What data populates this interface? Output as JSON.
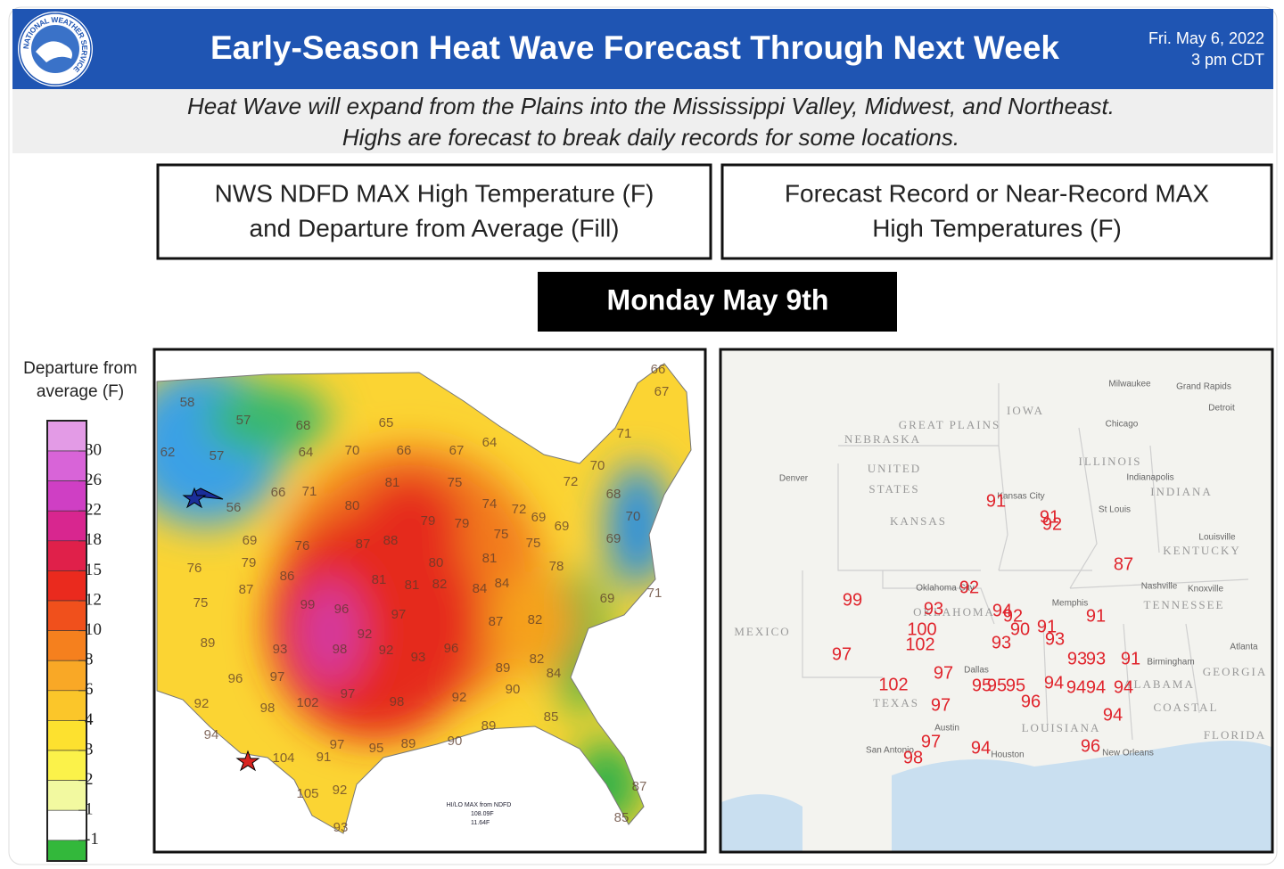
{
  "header": {
    "title": "Early-Season Heat Wave Forecast Through Next Week",
    "date": "Fri. May 6, 2022",
    "time": "3 pm CDT",
    "logo_text": "NATIONAL WEATHER SERVICE"
  },
  "subtitle": [
    "Heat Wave will expand from the Plains into the Mississippi Valley, Midwest, and Northeast.",
    "Highs are forecast to break daily records for some locations."
  ],
  "panels": {
    "left_title": [
      "NWS NDFD MAX High Temperature (F)",
      "and Departure from Average (Fill)"
    ],
    "right_title": [
      "Forecast Record or Near-Record MAX",
      "High Temperatures (F)"
    ]
  },
  "day": "Monday May 9th",
  "legend": {
    "title": [
      "Departure from",
      "average (F)"
    ],
    "labels": [
      30,
      26,
      22,
      18,
      15,
      12,
      10,
      8,
      6,
      4,
      3,
      2,
      1,
      -1
    ],
    "colors": [
      "#e39be6",
      "#d864d8",
      "#cf3fc4",
      "#d8268f",
      "#e0204a",
      "#ea2a1e",
      "#f0501c",
      "#f5801e",
      "#f9a826",
      "#fbc62a",
      "#fde12f",
      "#fbf24a",
      "#f2f9a0",
      "#ffffff",
      "#33b83b"
    ]
  },
  "left_map": {
    "temperatures": [
      58,
      57,
      68,
      65,
      66,
      64,
      67,
      70,
      64,
      57,
      62,
      66,
      67,
      71,
      70,
      72,
      68,
      70,
      69,
      69,
      69,
      74,
      72,
      75,
      75,
      78,
      81,
      84,
      84,
      87,
      82,
      80,
      79,
      79,
      75,
      81,
      80,
      66,
      71,
      56,
      69,
      76,
      87,
      88,
      81,
      81,
      82,
      79,
      86,
      76,
      87,
      75,
      99,
      96,
      97,
      92,
      92,
      93,
      89,
      93,
      98,
      96,
      69,
      71,
      89,
      82,
      84,
      90,
      96,
      97,
      97,
      98,
      92,
      92,
      98,
      102,
      94,
      89,
      85,
      90,
      95,
      89,
      97,
      91,
      104,
      105,
      92,
      93,
      87,
      85
    ],
    "note": [
      "HI/LO MAX from NDFD",
      "108.09F",
      "11.64F"
    ]
  },
  "right_map": {
    "places": [
      "GREAT PLAINS",
      "NEBRASKA",
      "IOWA",
      "UNITED",
      "STATES",
      "KANSAS",
      "ILLINOIS",
      "INDIANA",
      "KENTUCKY",
      "TENNESSEE",
      "OKLAHOMA",
      "TEXAS",
      "LOUISIANA",
      "ALABAMA",
      "GEORGIA",
      "COASTAL",
      "FLORIDA",
      "MEXICO",
      "Denver",
      "Kansas City",
      "St Louis",
      "Chicago",
      "Milwaukee",
      "Grand Rapids",
      "Detroit",
      "Indianapolis",
      "Louisville",
      "Nashville",
      "Knoxville",
      "Memphis",
      "Oklahoma City",
      "Dallas",
      "Austin",
      "San Antonio",
      "Houston",
      "New Orleans",
      "Birmingham",
      "Atlanta"
    ],
    "temperatures": [
      91,
      91,
      92,
      99,
      92,
      93,
      94,
      92,
      90,
      91,
      91,
      87,
      100,
      102,
      93,
      93,
      97,
      93,
      93,
      91,
      97,
      95,
      95,
      95,
      94,
      94,
      94,
      94,
      102,
      97,
      96,
      94,
      97,
      98,
      94,
      96
    ]
  }
}
